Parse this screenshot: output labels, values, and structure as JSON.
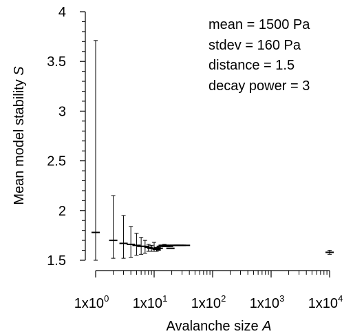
{
  "chart_data": {
    "type": "scatter",
    "xlabel_text": "Avalanche size ",
    "xlabel_var": "A",
    "ylabel_text": "Mean model stability ",
    "ylabel_var": "S",
    "xscale": "log",
    "xlim": [
      0.5,
      20000
    ],
    "ylim": [
      1.5,
      4
    ],
    "yticks": [
      "1.5",
      "2",
      "2.5",
      "3",
      "3.5",
      "4"
    ],
    "xticks": [
      {
        "base": "1x10",
        "exp": "0"
      },
      {
        "base": "1x10",
        "exp": "1"
      },
      {
        "base": "1x10",
        "exp": "2"
      },
      {
        "base": "1x10",
        "exp": "3"
      },
      {
        "base": "1x10",
        "exp": "4"
      }
    ],
    "annotations": [
      "mean = 1500 Pa",
      "stdev = 160 Pa",
      "distance = 1.5",
      "decay power = 3"
    ],
    "grid": false,
    "points": [
      {
        "x": 1,
        "y": 1.78,
        "ylo": 1.5,
        "yhi": 3.71
      },
      {
        "x": 2,
        "y": 1.7,
        "ylo": 1.52,
        "yhi": 2.15
      },
      {
        "x": 3,
        "y": 1.67,
        "ylo": 1.52,
        "yhi": 1.95
      },
      {
        "x": 4,
        "y": 1.66,
        "ylo": 1.53,
        "yhi": 1.84
      },
      {
        "x": 5,
        "y": 1.65,
        "ylo": 1.55,
        "yhi": 1.77
      },
      {
        "x": 6,
        "y": 1.64,
        "ylo": 1.56,
        "yhi": 1.73
      },
      {
        "x": 7,
        "y": 1.64,
        "ylo": 1.57,
        "yhi": 1.7
      },
      {
        "x": 8,
        "y": 1.63,
        "ylo": 1.59,
        "yhi": 1.66
      },
      {
        "x": 9,
        "y": 1.62,
        "ylo": 1.59,
        "yhi": 1.65
      },
      {
        "x": 10,
        "y": 1.62,
        "ylo": 1.59,
        "yhi": 1.68
      },
      {
        "x": 11,
        "y": 1.61,
        "ylo": 1.59,
        "yhi": 1.63
      },
      {
        "x": 12,
        "y": 1.62,
        "ylo": 1.6,
        "yhi": 1.63
      },
      {
        "x": 13,
        "y": 1.64,
        "ylo": 1.64,
        "yhi": 1.64
      },
      {
        "x": 14,
        "y": 1.65,
        "ylo": 1.65,
        "yhi": 1.65
      },
      {
        "x": 15,
        "y": 1.65,
        "ylo": 1.64,
        "yhi": 1.66
      },
      {
        "x": 16,
        "y": 1.64,
        "ylo": 1.64,
        "yhi": 1.64
      },
      {
        "x": 17,
        "y": 1.65,
        "ylo": 1.65,
        "yhi": 1.65
      },
      {
        "x": 18,
        "y": 1.64,
        "ylo": 1.64,
        "yhi": 1.64
      },
      {
        "x": 19,
        "y": 1.62,
        "ylo": 1.62,
        "yhi": 1.62
      },
      {
        "x": 20,
        "y": 1.65,
        "ylo": 1.65,
        "yhi": 1.65
      },
      {
        "x": 22,
        "y": 1.65,
        "ylo": 1.65,
        "yhi": 1.65
      },
      {
        "x": 24,
        "y": 1.65,
        "ylo": 1.65,
        "yhi": 1.65
      },
      {
        "x": 26,
        "y": 1.65,
        "ylo": 1.65,
        "yhi": 1.65
      },
      {
        "x": 28,
        "y": 1.65,
        "ylo": 1.65,
        "yhi": 1.65
      },
      {
        "x": 30,
        "y": 1.65,
        "ylo": 1.65,
        "yhi": 1.65
      },
      {
        "x": 35,
        "y": 1.65,
        "ylo": 1.65,
        "yhi": 1.65
      },
      {
        "x": 10000,
        "y": 1.58,
        "ylo": 1.56,
        "yhi": 1.6
      }
    ]
  }
}
